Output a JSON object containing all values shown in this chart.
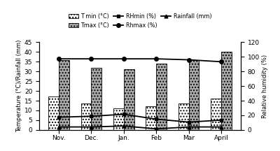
{
  "months": [
    "Nov.",
    "Dec.",
    "Jan.",
    "Feb",
    "Mar",
    "April"
  ],
  "tmin": [
    17,
    13.5,
    11,
    12,
    13.5,
    16
  ],
  "tmax": [
    36,
    32,
    31,
    34,
    36,
    40
  ],
  "rhmin": [
    6.5,
    7,
    8,
    5.5,
    4,
    5
  ],
  "rhmax": [
    36.5,
    36.5,
    36.5,
    36.5,
    36,
    35
  ],
  "rainfall": [
    1.5,
    1.5,
    2,
    0.5,
    1.5,
    1.5
  ],
  "ylim_left": [
    0,
    45
  ],
  "ylim_right": [
    0,
    120
  ],
  "yticks_left": [
    0,
    5,
    10,
    15,
    20,
    25,
    30,
    35,
    40,
    45
  ],
  "yticks_right": [
    0,
    20,
    40,
    60,
    80,
    100,
    120
  ],
  "ylabel_left": "Temperature (°C)/Rainfall (mm)",
  "ylabel_right": "Relative humidity (%)",
  "background": "white",
  "fig_width": 4.0,
  "fig_height": 2.16,
  "dpi": 100
}
